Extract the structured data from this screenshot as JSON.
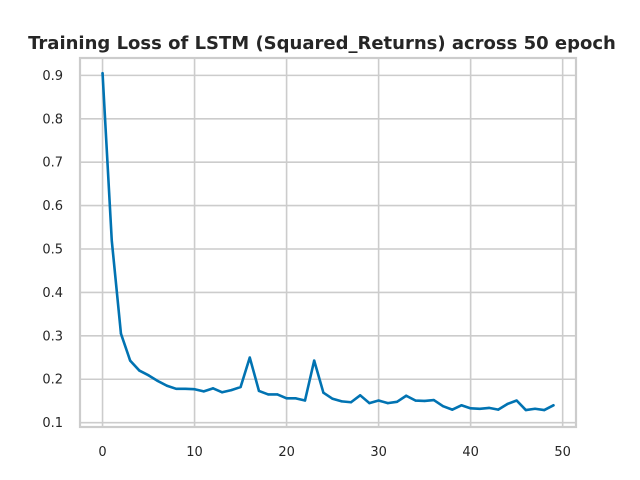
{
  "chart_data": {
    "type": "line",
    "title": "Training Loss of LSTM (Squared_Returns) across 50 epoch",
    "xlabel": "",
    "ylabel": "",
    "xlim": [
      -2.45,
      51.45
    ],
    "ylim": [
      0.09,
      0.94
    ],
    "x_ticks": [
      0,
      10,
      20,
      30,
      40,
      50
    ],
    "x_tick_labels": [
      "0",
      "10",
      "20",
      "30",
      "40",
      "50"
    ],
    "y_ticks": [
      0.1,
      0.2,
      0.3,
      0.4,
      0.5,
      0.6,
      0.7,
      0.8,
      0.9
    ],
    "y_tick_labels": [
      "0.1",
      "0.2",
      "0.3",
      "0.4",
      "0.5",
      "0.6",
      "0.7",
      "0.8",
      "0.9"
    ],
    "grid": true,
    "legend": "none",
    "colors": {
      "line": "#0173b2",
      "grid": "#cccccc",
      "spine": "#cccccc",
      "text": "#262626"
    },
    "series": [
      {
        "x": [
          0,
          1,
          2,
          3,
          4,
          5,
          6,
          7,
          8,
          9,
          10,
          11,
          12,
          13,
          14,
          15,
          16,
          17,
          18,
          19,
          20,
          21,
          22,
          23,
          24,
          25,
          26,
          27,
          28,
          29,
          30,
          31,
          32,
          33,
          34,
          35,
          36,
          37,
          38,
          39,
          40,
          41,
          42,
          43,
          44,
          45,
          46,
          47,
          48,
          49
        ],
        "values": [
          0.905,
          0.52,
          0.305,
          0.243,
          0.22,
          0.209,
          0.196,
          0.185,
          0.178,
          0.178,
          0.177,
          0.172,
          0.179,
          0.17,
          0.175,
          0.182,
          0.25,
          0.173,
          0.165,
          0.165,
          0.156,
          0.156,
          0.151,
          0.243,
          0.169,
          0.155,
          0.149,
          0.147,
          0.163,
          0.145,
          0.151,
          0.145,
          0.148,
          0.162,
          0.151,
          0.15,
          0.152,
          0.138,
          0.13,
          0.14,
          0.133,
          0.132,
          0.134,
          0.13,
          0.143,
          0.151,
          0.129,
          0.132,
          0.129,
          0.14
        ]
      }
    ]
  }
}
